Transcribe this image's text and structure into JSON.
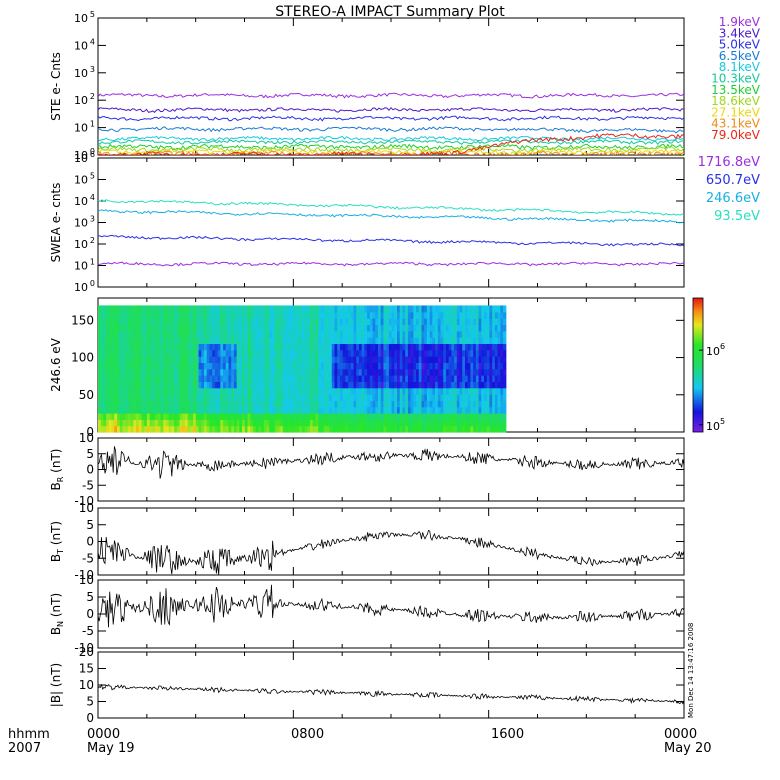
{
  "title": "STEREO-A IMPACT Summary Plot",
  "footer": {
    "row1_label": "hhmm",
    "row2_label": "2007",
    "ticks": [
      "0000",
      "0800",
      "1600",
      "0000"
    ],
    "dates": [
      "May 19",
      "",
      "",
      "May 20"
    ]
  },
  "timestamp": "Mon Dec 14 13:47:16 2008",
  "chart_data": [
    {
      "panel": "ste",
      "type": "line",
      "ylabel": "STE e- Cnts",
      "scale": "log",
      "ylim": [
        1,
        100000
      ],
      "yticks": [
        "10",
        "10",
        "10",
        "10",
        "10",
        "10"
      ],
      "ytick_exponents": [
        "0",
        "1",
        "2",
        "3",
        "4",
        "5"
      ],
      "xlim_hours": [
        0,
        24
      ],
      "legend_placement": "right",
      "series": [
        {
          "name": "1.9keV",
          "color": "#9a2ee0",
          "values_start_end": [
            150,
            150
          ]
        },
        {
          "name": "3.4keV",
          "color": "#4a1ac8",
          "values_start_end": [
            45,
            45
          ]
        },
        {
          "name": "5.0keV",
          "color": "#2830e8",
          "values_start_end": [
            22,
            22
          ]
        },
        {
          "name": "6.5keV",
          "color": "#1a7ad8",
          "values_start_end": [
            9,
            8
          ]
        },
        {
          "name": "8.1keV",
          "color": "#18c8e0",
          "values_start_end": [
            4,
            4
          ]
        },
        {
          "name": "10.3keV",
          "color": "#18c89a",
          "values_start_end": [
            3,
            3
          ]
        },
        {
          "name": "13.5keV",
          "color": "#20d030",
          "values_start_end": [
            2,
            2
          ]
        },
        {
          "name": "18.6keV",
          "color": "#a0d820",
          "values_start_end": [
            1.6,
            1.6
          ]
        },
        {
          "name": "27.1keV",
          "color": "#e8d818",
          "values_start_end": [
            1.3,
            1.3
          ]
        },
        {
          "name": "43.1keV",
          "color": "#f08a18",
          "values_start_end": [
            1.1,
            1.1
          ]
        },
        {
          "name": "79.0keV",
          "color": "#e82818",
          "values_start_end": [
            1.05,
            5
          ]
        }
      ]
    },
    {
      "panel": "swea",
      "type": "line",
      "ylabel": "SWEA e- cnts",
      "scale": "log",
      "ylim": [
        1,
        1000000
      ],
      "yticks": [
        "10",
        "10",
        "10",
        "10",
        "10",
        "10",
        "10"
      ],
      "ytick_exponents": [
        "0",
        "1",
        "2",
        "3",
        "4",
        "5",
        "6"
      ],
      "xlim_hours": [
        0,
        24
      ],
      "legend_placement": "right",
      "series": [
        {
          "name": "1716.8eV",
          "color": "#9a2ee0",
          "values_start_end": [
            12,
            12
          ]
        },
        {
          "name": "650.7eV",
          "color": "#2830e8",
          "values_start_end": [
            220,
            90
          ]
        },
        {
          "name": "246.6eV",
          "color": "#18b0e0",
          "values_start_end": [
            3500,
            1100
          ]
        },
        {
          "name": "93.5eV",
          "color": "#28e0c0",
          "values_start_end": [
            11000,
            2500
          ]
        }
      ]
    },
    {
      "panel": "pad",
      "type": "heatmap",
      "ylabel": "246.6 eV",
      "ylim": [
        0,
        180
      ],
      "yticks": [
        "0",
        "50",
        "100",
        "150"
      ],
      "xlim_hours": [
        0,
        24
      ],
      "data_hours": [
        0,
        16.7
      ],
      "colorbar": {
        "scale": "log",
        "ticks": [
          "10",
          "10"
        ],
        "tick_exponents": [
          "5",
          "6"
        ],
        "range": [
          80000,
          5000000
        ]
      }
    },
    {
      "panel": "br",
      "type": "line",
      "ylabel_main": "B",
      "ylabel_sub": "R",
      "ylabel_unit": " (nT)",
      "ylim": [
        -10,
        10
      ],
      "yticks": [
        "-10",
        "-5",
        "0",
        "5",
        "10"
      ],
      "xlim_hours": [
        0,
        24
      ]
    },
    {
      "panel": "bt",
      "type": "line",
      "ylabel_main": "B",
      "ylabel_sub": "T",
      "ylabel_unit": " (nT)",
      "ylim": [
        -10,
        10
      ],
      "yticks": [
        "-10",
        "-5",
        "0",
        "5",
        "10"
      ],
      "xlim_hours": [
        0,
        24
      ]
    },
    {
      "panel": "bn",
      "type": "line",
      "ylabel_main": "B",
      "ylabel_sub": "N",
      "ylabel_unit": " (nT)",
      "ylim": [
        -10,
        10
      ],
      "yticks": [
        "-10",
        "-5",
        "0",
        "5",
        "10"
      ],
      "xlim_hours": [
        0,
        24
      ]
    },
    {
      "panel": "bmag",
      "type": "line",
      "ylabel_main": "|B|",
      "ylabel_sub": "",
      "ylabel_unit": " (nT)",
      "ylim": [
        0,
        20
      ],
      "yticks": [
        "0",
        "5",
        "10",
        "15",
        "20"
      ],
      "xlim_hours": [
        0,
        24
      ]
    }
  ]
}
